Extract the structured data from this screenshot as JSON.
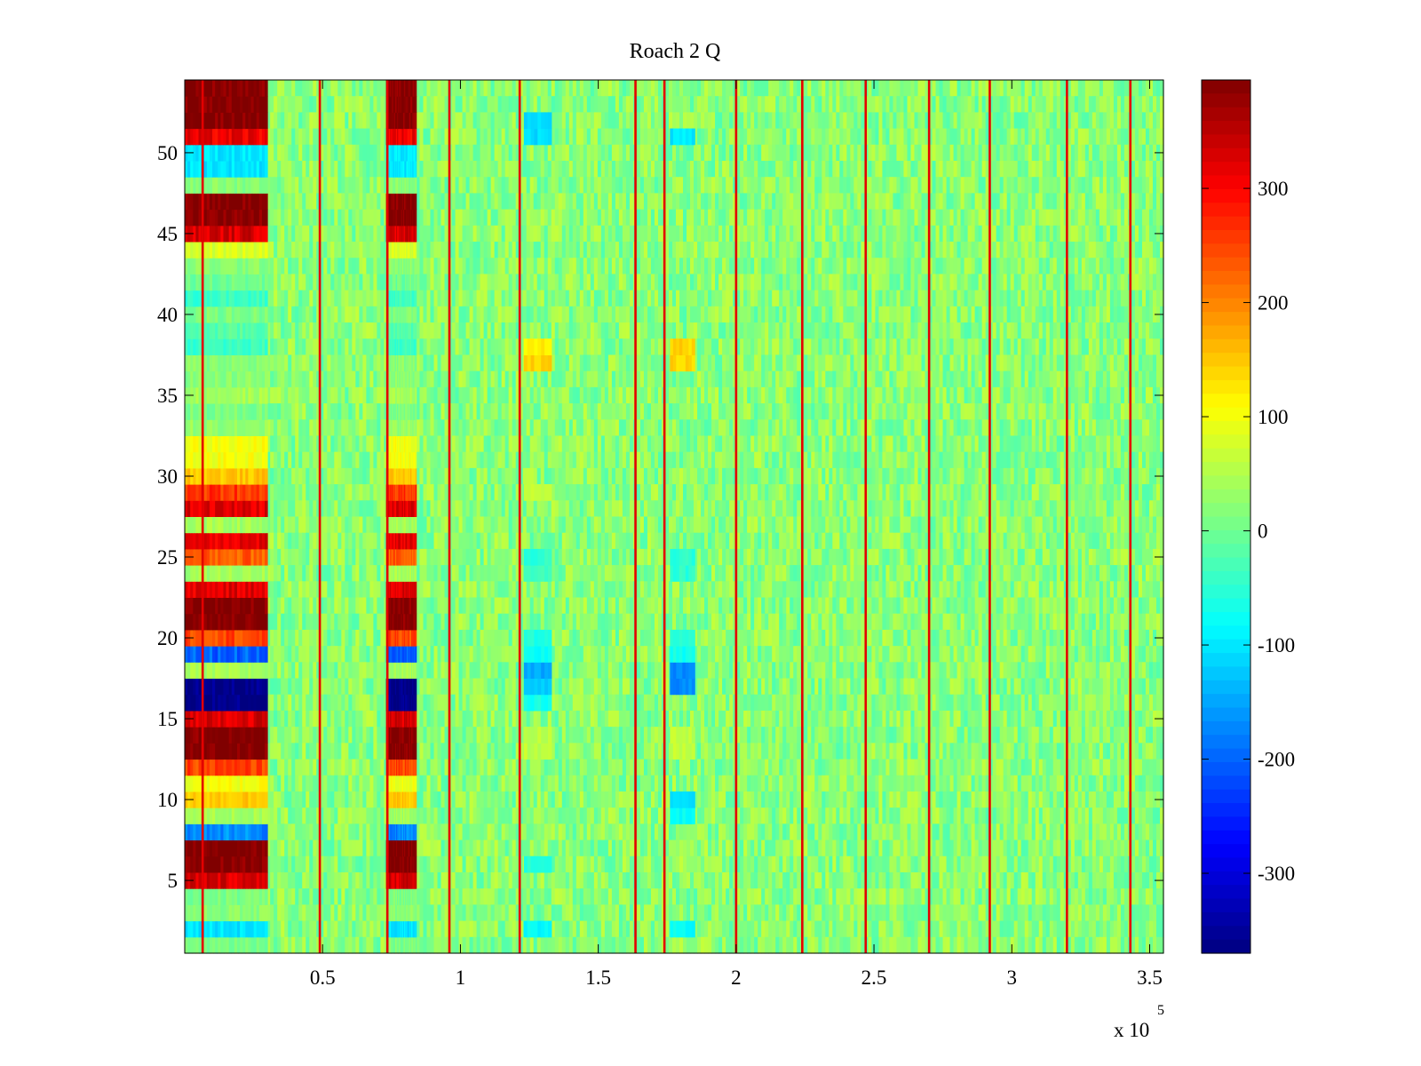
{
  "chart_data": {
    "type": "heatmap",
    "title": "Roach 2 Q",
    "xlabel": "",
    "ylabel": "",
    "x_multiplier_label": "x 10",
    "x_multiplier_exponent": "5",
    "xlim": [
      0,
      3.55
    ],
    "ylim": [
      0.5,
      54.5
    ],
    "x_ticks": [
      "0.5",
      "1",
      "1.5",
      "2",
      "2.5",
      "3",
      "3.5"
    ],
    "x_tick_values": [
      0.5,
      1,
      1.5,
      2,
      2.5,
      3,
      3.5
    ],
    "y_ticks": [
      "5",
      "10",
      "15",
      "20",
      "25",
      "30",
      "35",
      "40",
      "45",
      "50"
    ],
    "y_tick_values": [
      5,
      10,
      15,
      20,
      25,
      30,
      35,
      40,
      45,
      50
    ],
    "colormap": "jet",
    "clim": [
      -370,
      395
    ],
    "colorbar_ticks": [
      "300",
      "200",
      "100",
      "0",
      "-100",
      "-200",
      "-300"
    ],
    "colorbar_tick_values": [
      300,
      200,
      100,
      0,
      -100,
      -200,
      -300
    ],
    "background_value": 20,
    "active_blocks": [
      {
        "x_start": 0.0,
        "x_end": 0.3
      },
      {
        "x_start": 0.73,
        "x_end": 0.84
      }
    ],
    "block_row_values": {
      "1": 10,
      "2": -100,
      "3": 20,
      "4": 10,
      "5": 330,
      "6": 395,
      "7": 395,
      "8": -170,
      "9": 40,
      "10": 150,
      "11": 100,
      "12": 250,
      "13": 395,
      "14": 395,
      "15": 330,
      "16": -370,
      "17": -370,
      "18": 40,
      "19": -200,
      "20": 250,
      "21": 395,
      "22": 395,
      "23": 320,
      "24": 40,
      "25": 230,
      "26": 320,
      "27": 40,
      "28": 320,
      "29": 260,
      "30": 150,
      "31": 100,
      "32": 100,
      "33": 30,
      "34": 10,
      "35": 40,
      "36": 20,
      "37": 20,
      "38": -40,
      "39": -20,
      "40": 10,
      "41": -40,
      "42": 0,
      "43": 20,
      "44": 80,
      "45": 330,
      "46": 395,
      "47": 395,
      "48": 20,
      "49": -100,
      "50": -100,
      "51": 310,
      "52": 395,
      "53": 395,
      "54": 395
    },
    "vertical_line_positions": [
      0.065,
      0.49,
      0.735,
      0.96,
      1.215,
      1.635,
      1.74,
      2.0,
      2.24,
      2.47,
      2.7,
      2.92,
      3.2,
      3.43
    ],
    "vertical_line_value": 320,
    "secondary_columns": [
      {
        "x_start": 1.23,
        "x_end": 1.33,
        "row_values": {
          "2": -80,
          "6": -60,
          "13": 60,
          "14": 60,
          "16": -70,
          "17": -120,
          "18": -150,
          "19": -80,
          "20": -60,
          "24": -40,
          "25": -50,
          "29": 60,
          "37": 140,
          "38": 120,
          "51": -110,
          "52": -110
        }
      },
      {
        "x_start": 1.76,
        "x_end": 1.85,
        "row_values": {
          "2": -80,
          "9": -80,
          "10": -100,
          "13": 60,
          "14": 60,
          "17": -170,
          "18": -170,
          "19": -70,
          "20": -60,
          "24": -50,
          "25": -50,
          "37": 140,
          "38": 140,
          "51": -100
        }
      }
    ]
  }
}
